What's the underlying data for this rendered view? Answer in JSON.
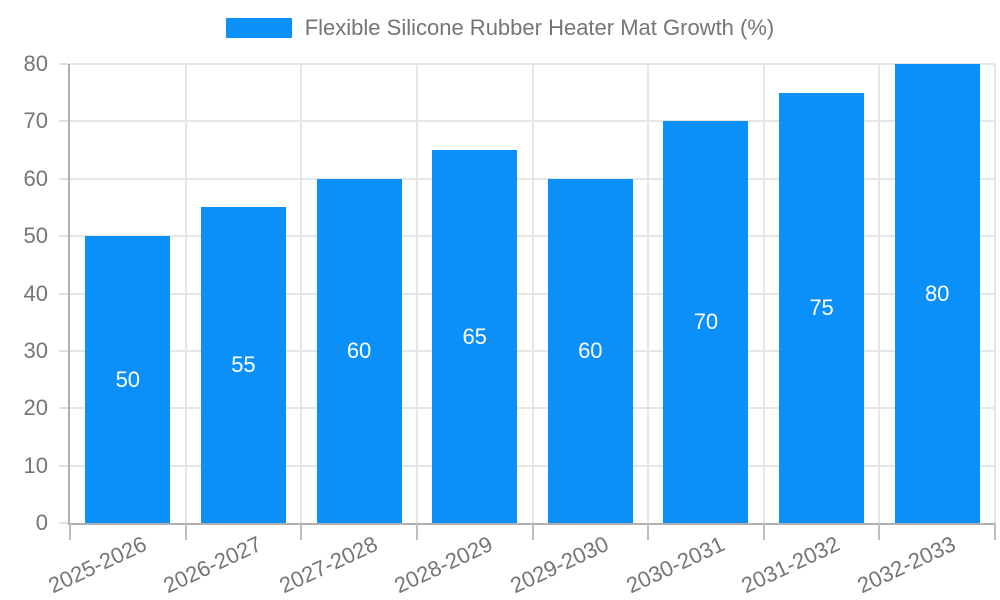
{
  "chart_data": {
    "type": "bar",
    "title": "Flexible Silicone Rubber Heater Mat Growth (%)",
    "categories": [
      "2025-2026",
      "2026-2027",
      "2027-2028",
      "2028-2029",
      "2029-2030",
      "2030-2031",
      "2031-2032",
      "2032-2033"
    ],
    "values": [
      50,
      55,
      60,
      65,
      60,
      70,
      75,
      80
    ],
    "xlabel": "",
    "ylabel": "",
    "ylim": [
      0,
      80
    ],
    "yticks": [
      0,
      10,
      20,
      30,
      40,
      50,
      60,
      70,
      80
    ],
    "grid": "on",
    "legend_position": "top-center",
    "colors": {
      "bar": "#0a90f8",
      "value_label": "#ffffff",
      "axis_text": "#757575",
      "legend_text": "#757575",
      "gridline": "#e6e6e6",
      "axis_line": "#b0b0b0",
      "background": "#ffffff"
    }
  }
}
